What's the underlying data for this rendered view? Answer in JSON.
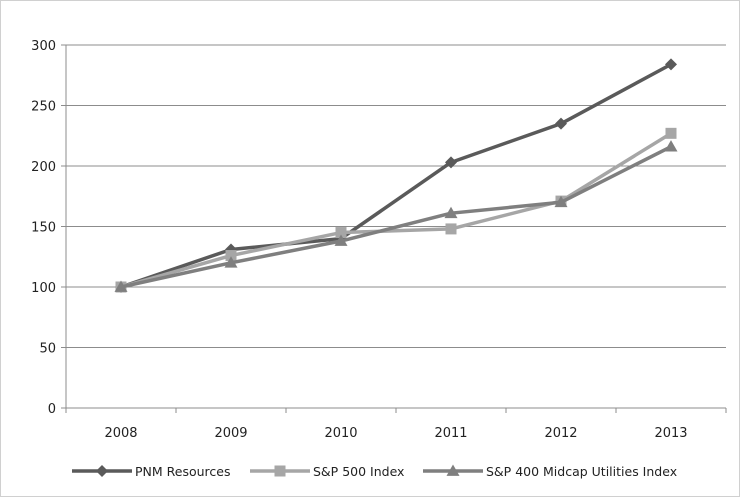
{
  "chart_data": {
    "type": "line",
    "title": "",
    "xlabel": "",
    "ylabel": "",
    "categories": [
      "2008",
      "2009",
      "2010",
      "2011",
      "2012",
      "2013"
    ],
    "ylim": [
      0,
      300
    ],
    "yticks": [
      0,
      50,
      100,
      150,
      200,
      250,
      300
    ],
    "grid": true,
    "legend_position": "bottom",
    "series": [
      {
        "name": "PNM Resources",
        "values": [
          100,
          131,
          140,
          203,
          235,
          284
        ],
        "color": "#5a5a5a",
        "marker": "diamond"
      },
      {
        "name": "S&P 500 Index",
        "values": [
          100,
          126,
          145,
          148,
          171,
          227
        ],
        "color": "#a6a6a6",
        "marker": "square"
      },
      {
        "name": "S&P 400 Midcap Utilities Index",
        "values": [
          100,
          120,
          138,
          161,
          170,
          216
        ],
        "color": "#7f7f7f",
        "marker": "triangle"
      }
    ]
  }
}
